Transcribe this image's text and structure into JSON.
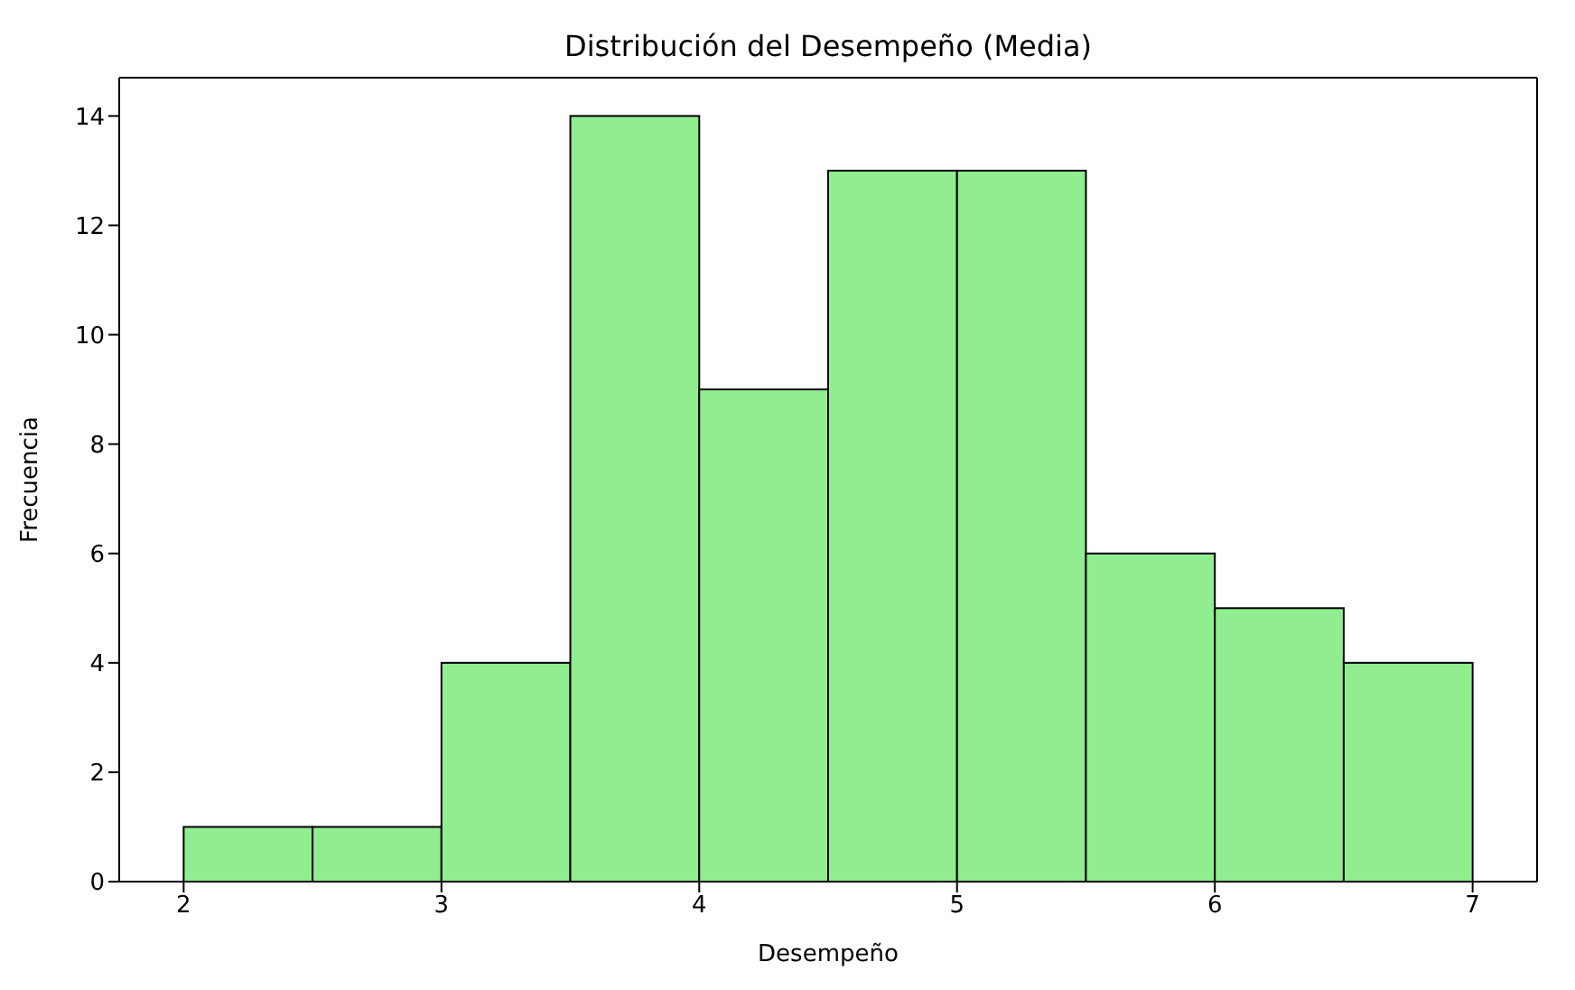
{
  "chart_data": {
    "type": "histogram",
    "title": "Distribución del Desempeño (Media)",
    "xlabel": "Desempeño",
    "ylabel": "Frecuencia",
    "bins": [
      2,
      2.5,
      3,
      3.5,
      4,
      4.5,
      5,
      5.5,
      6,
      6.5,
      7
    ],
    "values": [
      1,
      1,
      4,
      14,
      9,
      13,
      13,
      6,
      5,
      4
    ],
    "color": "#90ee90",
    "xlim": [
      1.75,
      7.25
    ],
    "xticks": [
      2,
      3,
      4,
      5,
      6,
      7
    ],
    "ylim": [
      0,
      14.7
    ],
    "yticks": [
      0,
      2,
      4,
      6,
      8,
      10,
      12,
      14
    ],
    "grid": false,
    "legend": false
  }
}
